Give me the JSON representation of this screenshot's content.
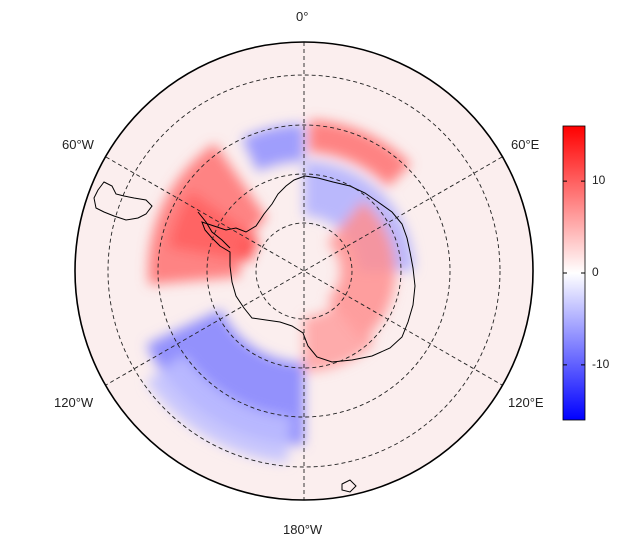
{
  "longitude_labels": {
    "top": "0°",
    "upper_left": "60°W",
    "upper_right": "60°E",
    "lower_left": "120°W",
    "lower_right": "120°E",
    "bottom": "180°W"
  },
  "colorbar": {
    "min": -16,
    "max": 16,
    "ticks": [
      {
        "value": 10,
        "label": "10"
      },
      {
        "value": 0,
        "label": "0"
      },
      {
        "value": -10,
        "label": "-10"
      }
    ],
    "colors": {
      "low": "#0000ff",
      "mid": "#ffffff",
      "high": "#ff0000"
    }
  },
  "field_anomalies": [
    {
      "lon_from": -80,
      "lon_to": -55,
      "lat_from": -78,
      "lat_to": -60,
      "value": 16
    },
    {
      "lon_from": -95,
      "lon_to": -35,
      "lat_from": -76,
      "lat_to": -56,
      "value": 9
    },
    {
      "lon_from": -25,
      "lon_to": 0,
      "lat_from": -66,
      "lat_to": -58,
      "value": -7
    },
    {
      "lon_from": 2,
      "lon_to": 45,
      "lat_from": -64,
      "lat_to": -57,
      "value": 9
    },
    {
      "lon_from": 0,
      "lon_to": 90,
      "lat_from": -78,
      "lat_to": -66,
      "value": -5
    },
    {
      "lon_from": 40,
      "lon_to": 140,
      "lat_from": -82,
      "lat_to": -70,
      "value": 7
    },
    {
      "lon_from": 135,
      "lon_to": 180,
      "lat_from": -80,
      "lat_to": -68,
      "value": 6
    },
    {
      "lon_from": -180,
      "lon_to": -115,
      "lat_from": -70,
      "lat_to": -52,
      "value": -8
    },
    {
      "lon_from": -175,
      "lon_to": -125,
      "lat_from": -58,
      "lat_to": -48,
      "value": -4
    }
  ]
}
